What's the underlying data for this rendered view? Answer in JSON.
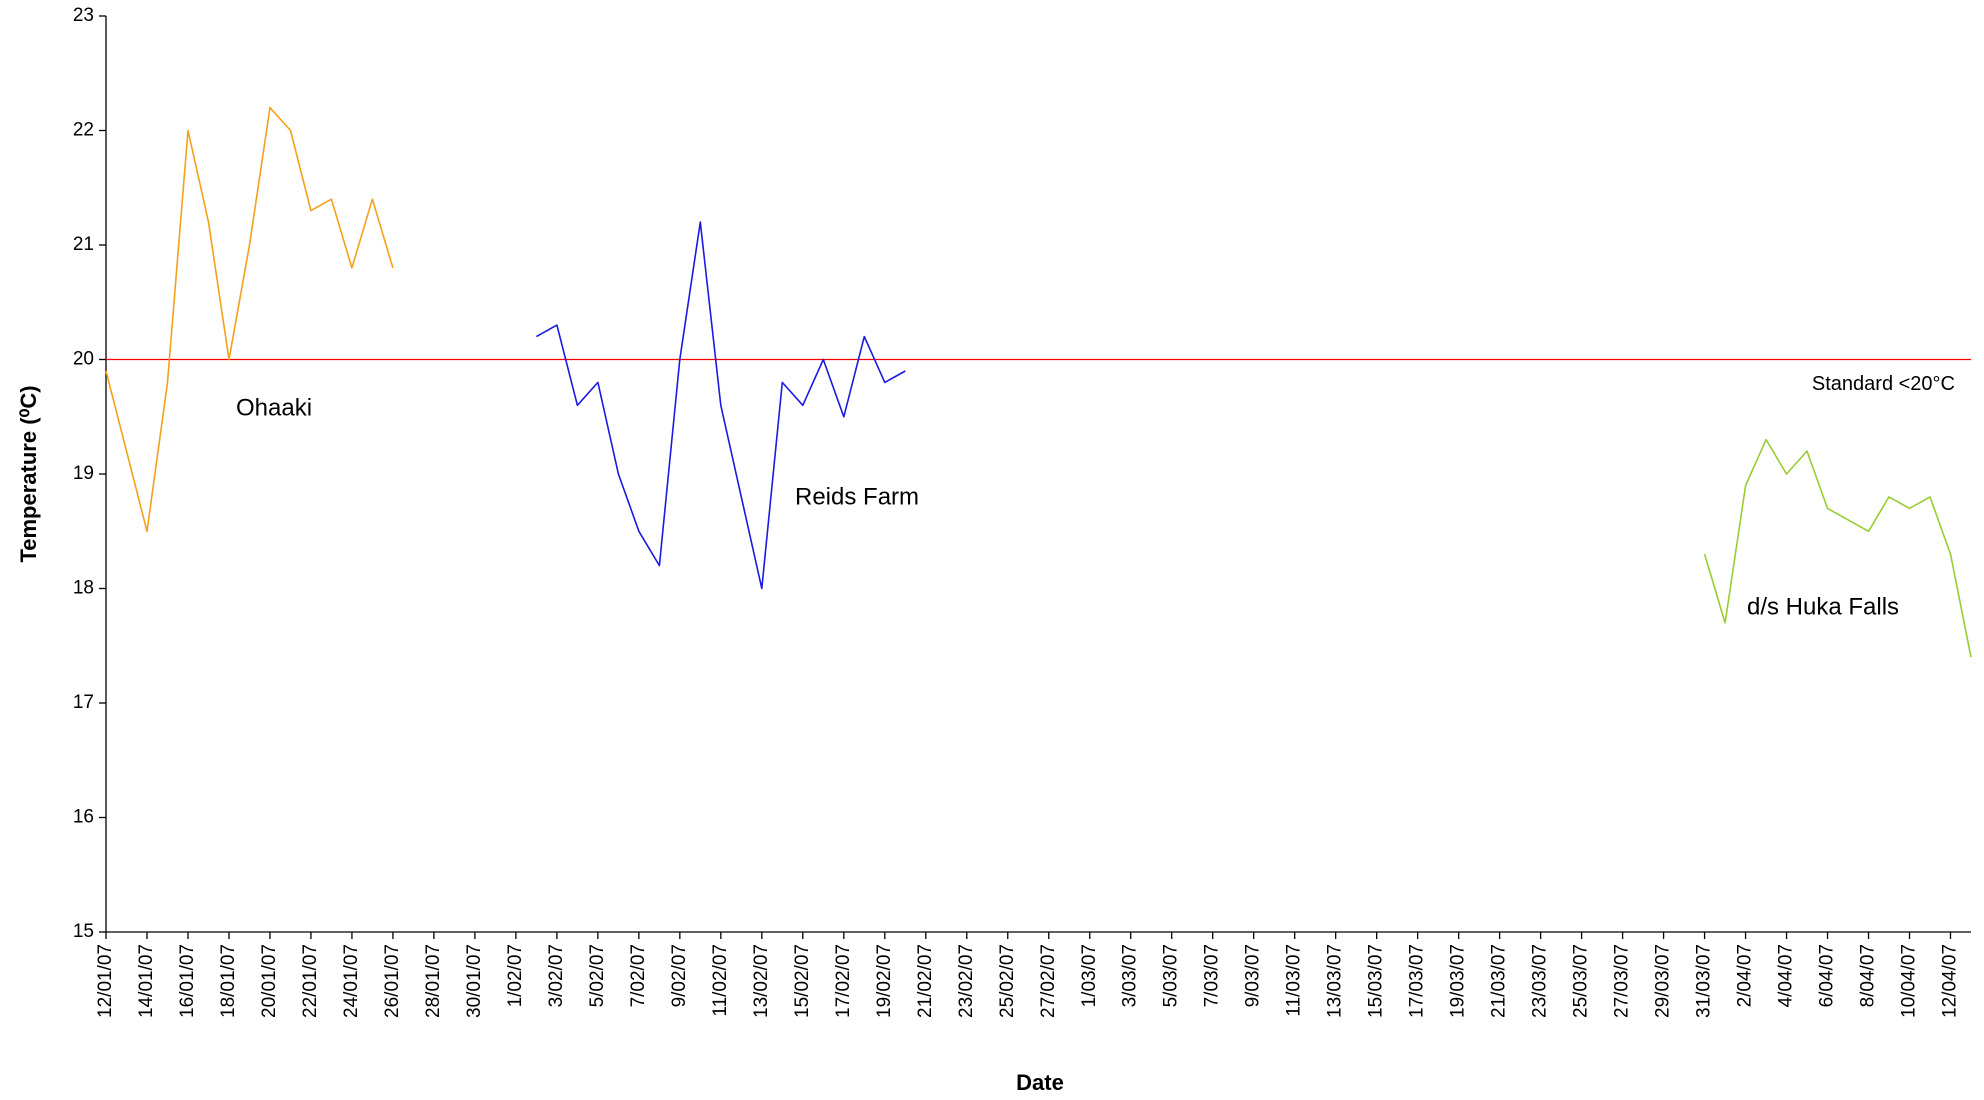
{
  "chart_data": {
    "type": "line",
    "x_label": "Date",
    "y_label": "Temperature (⁰C)",
    "ylim": [
      15,
      23
    ],
    "yticks": [
      15,
      16,
      17,
      18,
      19,
      20,
      21,
      22,
      23
    ],
    "xlim": [
      "12/01/07",
      "13/04/07"
    ],
    "xticks": [
      "12/01/07",
      "14/01/07",
      "16/01/07",
      "18/01/07",
      "20/01/07",
      "22/01/07",
      "24/01/07",
      "26/01/07",
      "28/01/07",
      "30/01/07",
      "1/02/07",
      "3/02/07",
      "5/02/07",
      "7/02/07",
      "9/02/07",
      "11/02/07",
      "13/02/07",
      "15/02/07",
      "17/02/07",
      "19/02/07",
      "21/02/07",
      "23/02/07",
      "25/02/07",
      "27/02/07",
      "1/03/07",
      "3/03/07",
      "5/03/07",
      "7/03/07",
      "9/03/07",
      "11/03/07",
      "13/03/07",
      "15/03/07",
      "17/03/07",
      "19/03/07",
      "21/03/07",
      "23/03/07",
      "25/03/07",
      "27/03/07",
      "29/03/07",
      "31/03/07",
      "2/04/07",
      "4/04/07",
      "6/04/07",
      "8/04/07",
      "10/04/07",
      "12/04/07"
    ],
    "reference_line": {
      "value": 20,
      "label": "Standard <20°C",
      "color": "#ff0000"
    },
    "series": [
      {
        "name": "Ohaaki",
        "color": "#f5a01a",
        "x": [
          "12/01/07",
          "13/01/07",
          "14/01/07",
          "15/01/07",
          "16/01/07",
          "17/01/07",
          "18/01/07",
          "19/01/07",
          "20/01/07",
          "21/01/07",
          "22/01/07",
          "23/01/07",
          "24/01/07",
          "25/01/07",
          "26/01/07"
        ],
        "values": [
          19.9,
          19.2,
          18.5,
          19.8,
          22.0,
          21.2,
          20.0,
          21.0,
          22.2,
          22.0,
          21.3,
          21.4,
          20.8,
          21.4,
          20.8
        ]
      },
      {
        "name": "Reids Farm",
        "color": "#1a1ae0",
        "x": [
          "2/02/07",
          "3/02/07",
          "4/02/07",
          "5/02/07",
          "6/02/07",
          "7/02/07",
          "8/02/07",
          "9/02/07",
          "10/02/07",
          "11/02/07",
          "12/02/07",
          "13/02/07",
          "14/02/07",
          "15/02/07",
          "16/02/07",
          "17/02/07",
          "18/02/07",
          "19/02/07",
          "20/02/07"
        ],
        "values": [
          20.2,
          20.3,
          19.6,
          19.8,
          19.0,
          18.5,
          18.2,
          20.0,
          21.2,
          19.6,
          18.8,
          18.0,
          19.8,
          19.6,
          20.0,
          19.5,
          20.2,
          19.8,
          19.9
        ]
      },
      {
        "name": "d/s Huka Falls",
        "color": "#99cc33",
        "x": [
          "31/03/07",
          "1/04/07",
          "2/04/07",
          "3/04/07",
          "4/04/07",
          "5/04/07",
          "6/04/07",
          "7/04/07",
          "8/04/07",
          "9/04/07",
          "10/04/07",
          "11/04/07",
          "12/04/07",
          "13/04/07"
        ],
        "values": [
          18.3,
          17.7,
          18.9,
          19.3,
          19.0,
          19.2,
          18.7,
          18.6,
          18.5,
          18.8,
          18.7,
          18.8,
          18.3,
          17.4
        ]
      }
    ]
  }
}
